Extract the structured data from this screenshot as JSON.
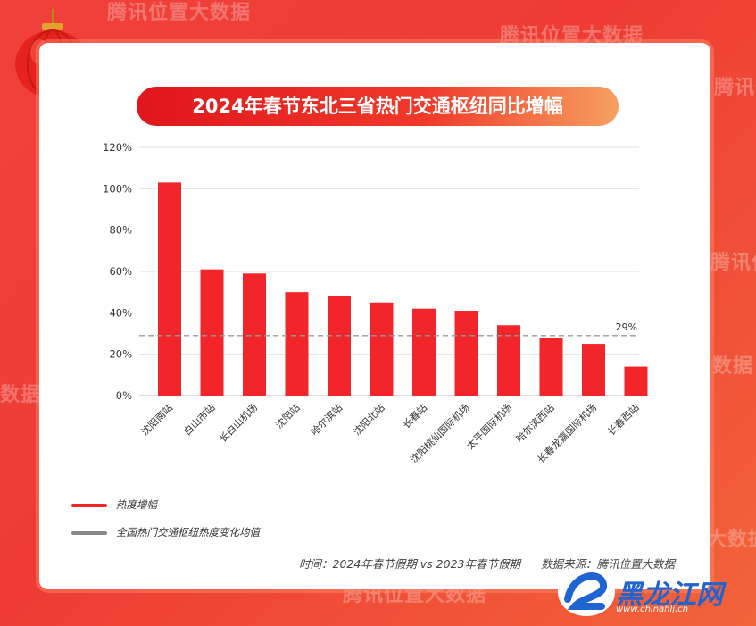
{
  "background": {
    "watermark_text": "腾讯位置大数据",
    "watermark_short_1": "数据",
    "watermark_short_2": "数据",
    "watermark_short_3": "大数据"
  },
  "chart_data": {
    "type": "bar",
    "title": "2024年春节东北三省热门交通枢纽同比增幅",
    "categories": [
      "沈阳南站",
      "白山市站",
      "长白山机场",
      "沈阳站",
      "哈尔滨站",
      "沈阳北站",
      "长春站",
      "沈阳桃仙国际机场",
      "太平国际机场",
      "哈尔滨西站",
      "长春龙嘉国际机场",
      "长春西站"
    ],
    "series": [
      {
        "name": "热度增幅",
        "values": [
          103,
          61,
          59,
          50,
          48,
          45,
          42,
          41,
          34,
          28,
          25,
          14
        ],
        "color": "#f2252b"
      }
    ],
    "reference_line": {
      "name": "全国热门交通枢纽热度变化均值",
      "value": 29,
      "label": "29%",
      "color": "#999999"
    },
    "y_ticks": [
      "0%",
      "20%",
      "40%",
      "60%",
      "80%",
      "100%",
      "120%"
    ],
    "ylim": [
      0,
      120
    ],
    "grid": true,
    "legend_position": "bottom-left"
  },
  "legend": {
    "bar_label": "热度增幅",
    "line_label": "全国热门交通枢纽热度变化均值"
  },
  "footer": {
    "time": "时间：2024年春节假期 vs 2023年春节假期",
    "source": "数据来源：腾讯位置大数据"
  },
  "logo": {
    "name": "黑龙江网",
    "url": "www.chinahlj.cn"
  },
  "colors": {
    "accent": "#f2252b",
    "background": "#ef3e35",
    "logo_blue": "#1f64d0"
  }
}
